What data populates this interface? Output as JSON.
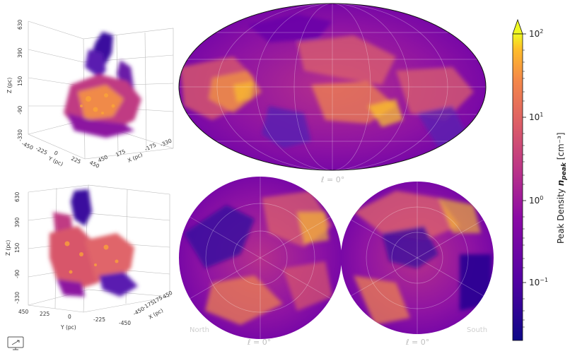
{
  "panels": {
    "top_3d": {
      "z_label": "Z (pc)",
      "z_ticks": [
        "630",
        "390",
        "150",
        "-90",
        "-330"
      ],
      "y_label": "Y (pc)",
      "y_ticks": [
        "-450",
        "-225",
        "0",
        "225",
        "450"
      ],
      "x_label": "X (pc)",
      "x_ticks": [
        "450",
        "175",
        "-175",
        "-330"
      ]
    },
    "bottom_3d": {
      "z_label": "Z (pc)",
      "z_ticks": [
        "630",
        "390",
        "150",
        "-90",
        "-330"
      ],
      "y_label": "Y (pc)",
      "y_ticks": [
        "450",
        "225",
        "0",
        "-225",
        "-450"
      ],
      "x_label": "X (pc)",
      "x_ticks": [
        "-450",
        "-175",
        "175",
        "450"
      ]
    },
    "mollweide": {
      "center_label": "ℓ = 0°"
    },
    "north": {
      "corner_label": "North",
      "center_label": "ℓ = 0°"
    },
    "south": {
      "corner_label": "South",
      "center_label": "ℓ = 0°"
    }
  },
  "colorbar": {
    "title": "Peak Density",
    "symbol": "n",
    "subscript": "peak",
    "unit": "[cm⁻³]",
    "ticks": [
      {
        "base": "10",
        "exp": "2"
      },
      {
        "base": "10",
        "exp": "1"
      },
      {
        "base": "10",
        "exp": "0"
      },
      {
        "base": "10",
        "exp": "−1"
      }
    ],
    "colormap": "plasma",
    "range": [
      0.02,
      100
    ],
    "scale": "log"
  },
  "icon": "monitor-icon"
}
